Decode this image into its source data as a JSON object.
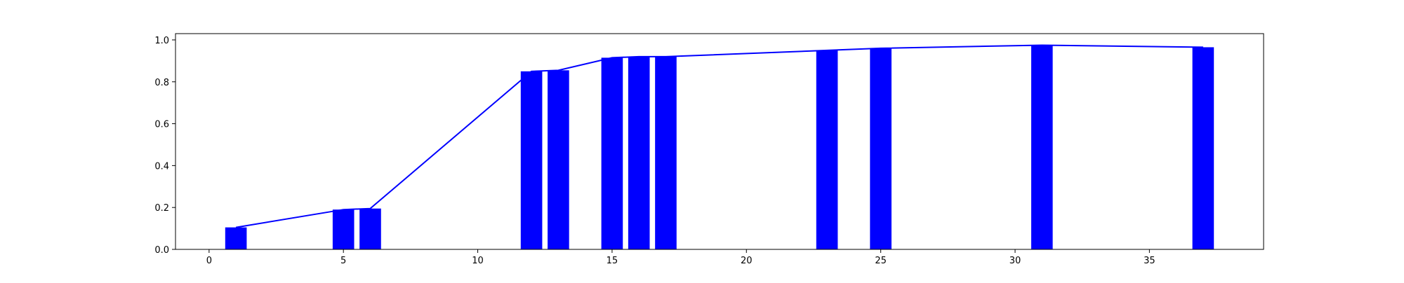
{
  "chart_data": {
    "type": "bar",
    "title": "",
    "xlabel": "",
    "ylabel": "",
    "xlim": [
      -1.25,
      39.25
    ],
    "ylim": [
      0.0,
      1.03
    ],
    "x_ticks": [
      0,
      5,
      10,
      15,
      20,
      25,
      30,
      35
    ],
    "y_ticks": [
      0.0,
      0.2,
      0.4,
      0.6,
      0.8,
      1.0
    ],
    "y_tick_labels": [
      "0.0",
      "0.2",
      "0.4",
      "0.6",
      "0.8",
      "1.0"
    ],
    "grid": false,
    "legend": "none",
    "bar_width": 0.8,
    "color": "#0000ff",
    "bars": {
      "x": [
        1,
        5,
        6,
        12,
        13,
        15,
        16,
        17,
        23,
        25,
        31,
        37
      ],
      "values": [
        0.105,
        0.19,
        0.195,
        0.85,
        0.855,
        0.915,
        0.92,
        0.92,
        0.95,
        0.96,
        0.975,
        0.965
      ]
    },
    "line": {
      "x": [
        1,
        5,
        6,
        12,
        13,
        15,
        16,
        17,
        23,
        25,
        31,
        37
      ],
      "values": [
        0.105,
        0.19,
        0.195,
        0.85,
        0.855,
        0.915,
        0.92,
        0.92,
        0.95,
        0.96,
        0.975,
        0.965
      ]
    }
  }
}
